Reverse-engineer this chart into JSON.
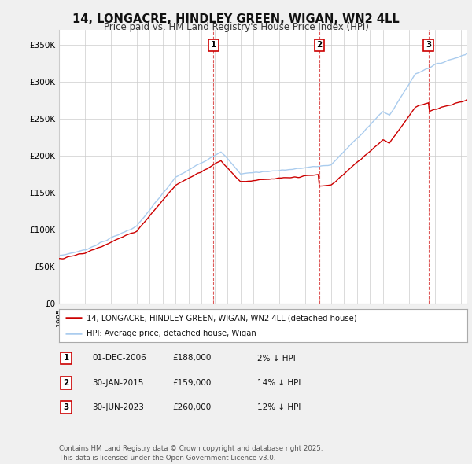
{
  "title_line1": "14, LONGACRE, HINDLEY GREEN, WIGAN, WN2 4LL",
  "title_line2": "Price paid vs. HM Land Registry's House Price Index (HPI)",
  "background_color": "#f0f0f0",
  "plot_bg_color": "#ffffff",
  "hpi_color": "#aaccee",
  "property_color": "#cc0000",
  "ylim": [
    0,
    370000
  ],
  "yticks": [
    0,
    50000,
    100000,
    150000,
    200000,
    250000,
    300000,
    350000
  ],
  "ytick_labels": [
    "£0",
    "£50K",
    "£100K",
    "£150K",
    "£200K",
    "£250K",
    "£300K",
    "£350K"
  ],
  "transactions": [
    {
      "date_num": 2006.92,
      "price": 188000,
      "label": "1"
    },
    {
      "date_num": 2015.08,
      "price": 159000,
      "label": "2"
    },
    {
      "date_num": 2023.5,
      "price": 260000,
      "label": "3"
    }
  ],
  "transaction_info": [
    {
      "label": "1",
      "date": "01-DEC-2006",
      "price": "£188,000",
      "pct": "2% ↓ HPI"
    },
    {
      "label": "2",
      "date": "30-JAN-2015",
      "price": "£159,000",
      "pct": "14% ↓ HPI"
    },
    {
      "label": "3",
      "date": "30-JUN-2023",
      "price": "£260,000",
      "pct": "12% ↓ HPI"
    }
  ],
  "legend_line1": "14, LONGACRE, HINDLEY GREEN, WIGAN, WN2 4LL (detached house)",
  "legend_line2": "HPI: Average price, detached house, Wigan",
  "footnote": "Contains HM Land Registry data © Crown copyright and database right 2025.\nThis data is licensed under the Open Government Licence v3.0.",
  "dashed_line_color": "#cc0000",
  "vline_dates": [
    2006.92,
    2015.08,
    2023.5
  ],
  "hpi_t1_price": 191000,
  "hpi_t2_price": 185000,
  "hpi_t3_price": 295000
}
